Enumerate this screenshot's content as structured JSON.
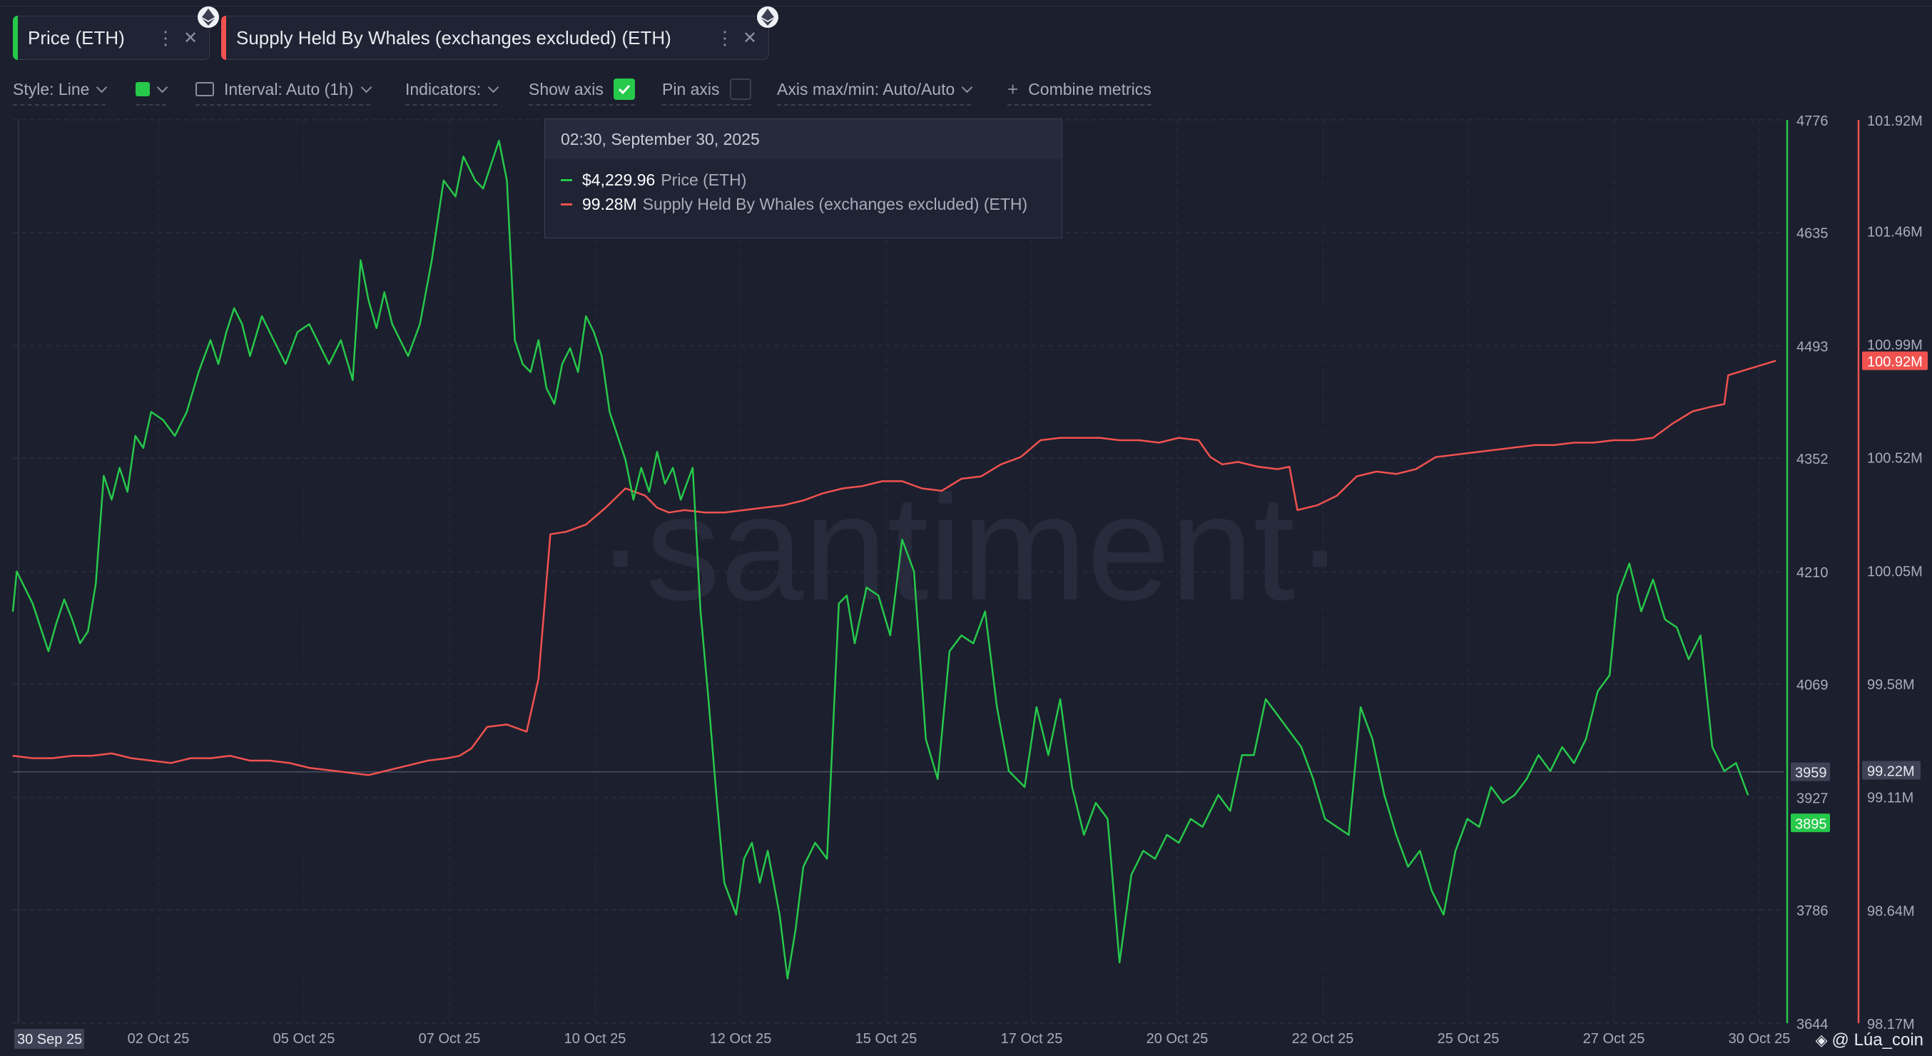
{
  "legend_tabs": [
    {
      "label": "Price (ETH)",
      "color": "#26c94a"
    },
    {
      "label": "Supply Held By Whales (exchanges excluded) (ETH)",
      "color": "#f0524f"
    }
  ],
  "toolbar": {
    "style": "Style: Line",
    "interval": "Interval: Auto (1h)",
    "indicators": "Indicators:",
    "show_axis": "Show axis",
    "pin_axis": "Pin axis",
    "axis_maxmin": "Axis max/min: Auto/Auto",
    "combine": "Combine metrics",
    "swatch_color": "#26c94a",
    "show_axis_checked": true,
    "pin_axis_checked": false
  },
  "tooltip": {
    "date": "02:30, September 30, 2025",
    "rows": [
      {
        "value": "$4,229.96",
        "name": "Price (ETH)",
        "color": "#26c94a"
      },
      {
        "value": "99.28M",
        "name": "Supply Held By Whales (exchanges excluded) (ETH)",
        "color": "#f0524f"
      }
    ]
  },
  "watermark": "·santiment·",
  "footer": "@ Lúa_coin",
  "chart_data": {
    "type": "line",
    "x_labels": [
      "30 Sep 25",
      "02 Oct 25",
      "05 Oct 25",
      "07 Oct 25",
      "10 Oct 25",
      "12 Oct 25",
      "15 Oct 25",
      "17 Oct 25",
      "20 Oct 25",
      "22 Oct 25",
      "25 Oct 25",
      "27 Oct 25",
      "30 Oct 25"
    ],
    "x_range": [
      "2025-09-30",
      "2025-10-30"
    ],
    "grid": true,
    "series": [
      {
        "name": "Price (ETH)",
        "color": "#26c94a",
        "axis": "left-price",
        "y_ticks": [
          "4776",
          "4635",
          "4493",
          "4352",
          "4210",
          "4069",
          "3927",
          "3786",
          "3644"
        ],
        "ylim": [
          3644,
          4776
        ],
        "last_value": "3895",
        "crosshair_value": "3959",
        "points": [
          [
            0.0,
            4160
          ],
          [
            0.1,
            4210
          ],
          [
            0.3,
            4190
          ],
          [
            0.5,
            4170
          ],
          [
            0.7,
            4140
          ],
          [
            0.9,
            4110
          ],
          [
            1.1,
            4145
          ],
          [
            1.3,
            4175
          ],
          [
            1.5,
            4150
          ],
          [
            1.7,
            4120
          ],
          [
            1.9,
            4135
          ],
          [
            2.1,
            4195
          ],
          [
            2.3,
            4330
          ],
          [
            2.5,
            4300
          ],
          [
            2.7,
            4340
          ],
          [
            2.9,
            4310
          ],
          [
            3.1,
            4380
          ],
          [
            3.3,
            4365
          ],
          [
            3.5,
            4410
          ],
          [
            3.8,
            4400
          ],
          [
            4.1,
            4380
          ],
          [
            4.4,
            4410
          ],
          [
            4.7,
            4460
          ],
          [
            5.0,
            4500
          ],
          [
            5.2,
            4470
          ],
          [
            5.4,
            4510
          ],
          [
            5.6,
            4540
          ],
          [
            5.8,
            4520
          ],
          [
            6.0,
            4480
          ],
          [
            6.3,
            4530
          ],
          [
            6.6,
            4500
          ],
          [
            6.9,
            4470
          ],
          [
            7.2,
            4510
          ],
          [
            7.5,
            4520
          ],
          [
            7.8,
            4490
          ],
          [
            8.0,
            4470
          ],
          [
            8.3,
            4500
          ],
          [
            8.6,
            4450
          ],
          [
            8.8,
            4600
          ],
          [
            9.0,
            4550
          ],
          [
            9.2,
            4515
          ],
          [
            9.4,
            4560
          ],
          [
            9.6,
            4520
          ],
          [
            9.8,
            4500
          ],
          [
            10.0,
            4480
          ],
          [
            10.3,
            4520
          ],
          [
            10.6,
            4600
          ],
          [
            10.9,
            4700
          ],
          [
            11.2,
            4680
          ],
          [
            11.4,
            4730
          ],
          [
            11.7,
            4700
          ],
          [
            11.9,
            4690
          ],
          [
            12.1,
            4720
          ],
          [
            12.3,
            4750
          ],
          [
            12.5,
            4700
          ],
          [
            12.7,
            4500
          ],
          [
            12.9,
            4470
          ],
          [
            13.1,
            4460
          ],
          [
            13.3,
            4500
          ],
          [
            13.5,
            4440
          ],
          [
            13.7,
            4420
          ],
          [
            13.9,
            4470
          ],
          [
            14.1,
            4490
          ],
          [
            14.3,
            4460
          ],
          [
            14.5,
            4530
          ],
          [
            14.7,
            4510
          ],
          [
            14.9,
            4480
          ],
          [
            15.1,
            4410
          ],
          [
            15.3,
            4380
          ],
          [
            15.5,
            4350
          ],
          [
            15.7,
            4300
          ],
          [
            15.9,
            4340
          ],
          [
            16.1,
            4310
          ],
          [
            16.3,
            4360
          ],
          [
            16.5,
            4320
          ],
          [
            16.7,
            4340
          ],
          [
            16.9,
            4300
          ],
          [
            17.2,
            4340
          ],
          [
            17.4,
            4160
          ],
          [
            17.6,
            4050
          ],
          [
            17.8,
            3930
          ],
          [
            18.0,
            3820
          ],
          [
            18.3,
            3780
          ],
          [
            18.5,
            3850
          ],
          [
            18.7,
            3870
          ],
          [
            18.9,
            3820
          ],
          [
            19.1,
            3860
          ],
          [
            19.4,
            3780
          ],
          [
            19.6,
            3700
          ],
          [
            19.8,
            3760
          ],
          [
            20.0,
            3840
          ],
          [
            20.3,
            3870
          ],
          [
            20.6,
            3850
          ],
          [
            20.9,
            4170
          ],
          [
            21.1,
            4180
          ],
          [
            21.3,
            4120
          ],
          [
            21.6,
            4190
          ],
          [
            21.9,
            4180
          ],
          [
            22.2,
            4130
          ],
          [
            22.5,
            4250
          ],
          [
            22.8,
            4210
          ],
          [
            23.1,
            4000
          ],
          [
            23.4,
            3950
          ],
          [
            23.7,
            4110
          ],
          [
            24.0,
            4130
          ],
          [
            24.3,
            4120
          ],
          [
            24.6,
            4160
          ],
          [
            24.9,
            4040
          ],
          [
            25.2,
            3960
          ],
          [
            25.6,
            3940
          ],
          [
            25.9,
            4040
          ],
          [
            26.2,
            3980
          ],
          [
            26.5,
            4050
          ],
          [
            26.8,
            3940
          ],
          [
            27.1,
            3880
          ],
          [
            27.4,
            3920
          ],
          [
            27.7,
            3900
          ],
          [
            28.0,
            3720
          ],
          [
            28.3,
            3830
          ],
          [
            28.6,
            3860
          ],
          [
            28.9,
            3850
          ],
          [
            29.2,
            3880
          ],
          [
            29.5,
            3870
          ],
          [
            29.8,
            3900
          ],
          [
            30.1,
            3890
          ],
          [
            30.5,
            3930
          ],
          [
            30.8,
            3910
          ],
          [
            31.1,
            3980
          ],
          [
            31.4,
            3980
          ],
          [
            31.7,
            4050
          ],
          [
            32.0,
            4030
          ],
          [
            32.3,
            4010
          ],
          [
            32.6,
            3990
          ],
          [
            32.9,
            3950
          ],
          [
            33.2,
            3900
          ],
          [
            33.5,
            3890
          ],
          [
            33.8,
            3880
          ],
          [
            34.1,
            4040
          ],
          [
            34.4,
            4000
          ],
          [
            34.7,
            3930
          ],
          [
            35.0,
            3880
          ],
          [
            35.3,
            3840
          ],
          [
            35.6,
            3860
          ],
          [
            35.9,
            3810
          ],
          [
            36.2,
            3780
          ],
          [
            36.5,
            3860
          ],
          [
            36.8,
            3900
          ],
          [
            37.1,
            3890
          ],
          [
            37.4,
            3940
          ],
          [
            37.7,
            3920
          ],
          [
            38.0,
            3930
          ],
          [
            38.3,
            3950
          ],
          [
            38.6,
            3980
          ],
          [
            38.9,
            3960
          ],
          [
            39.2,
            3990
          ],
          [
            39.5,
            3970
          ],
          [
            39.8,
            4000
          ],
          [
            40.1,
            4060
          ],
          [
            40.4,
            4080
          ],
          [
            40.6,
            4180
          ],
          [
            40.9,
            4220
          ],
          [
            41.2,
            4160
          ],
          [
            41.5,
            4200
          ],
          [
            41.8,
            4150
          ],
          [
            42.1,
            4140
          ],
          [
            42.4,
            4100
          ],
          [
            42.7,
            4130
          ],
          [
            43.0,
            3990
          ],
          [
            43.3,
            3960
          ],
          [
            43.6,
            3970
          ],
          [
            43.9,
            3930
          ]
        ]
      },
      {
        "name": "Supply Held By Whales (exchanges excluded) (ETH)",
        "color": "#f0524f",
        "axis": "right-supply",
        "y_ticks": [
          "101.92M",
          "101.46M",
          "100.99M",
          "100.52M",
          "100.05M",
          "99.58M",
          "99.11M",
          "98.64M",
          "98.17M"
        ],
        "ylim": [
          98.17,
          101.92
        ],
        "last_value": "100.92M",
        "crosshair_value": "99.22M",
        "points": [
          [
            0.0,
            99.28
          ],
          [
            0.5,
            99.27
          ],
          [
            1.0,
            99.27
          ],
          [
            1.5,
            99.28
          ],
          [
            2.0,
            99.28
          ],
          [
            2.5,
            99.29
          ],
          [
            3.0,
            99.27
          ],
          [
            3.5,
            99.26
          ],
          [
            4.0,
            99.25
          ],
          [
            4.5,
            99.27
          ],
          [
            5.0,
            99.27
          ],
          [
            5.5,
            99.28
          ],
          [
            6.0,
            99.26
          ],
          [
            6.5,
            99.26
          ],
          [
            7.0,
            99.25
          ],
          [
            7.5,
            99.23
          ],
          [
            8.0,
            99.22
          ],
          [
            8.5,
            99.21
          ],
          [
            9.0,
            99.2
          ],
          [
            9.5,
            99.22
          ],
          [
            10.0,
            99.24
          ],
          [
            10.5,
            99.26
          ],
          [
            11.0,
            99.27
          ],
          [
            11.3,
            99.28
          ],
          [
            11.6,
            99.31
          ],
          [
            12.0,
            99.4
          ],
          [
            12.5,
            99.41
          ],
          [
            13.0,
            99.38
          ],
          [
            13.3,
            99.6
          ],
          [
            13.6,
            100.2
          ],
          [
            14.0,
            100.21
          ],
          [
            14.5,
            100.24
          ],
          [
            15.0,
            100.31
          ],
          [
            15.5,
            100.39
          ],
          [
            16.0,
            100.36
          ],
          [
            16.3,
            100.31
          ],
          [
            16.6,
            100.29
          ],
          [
            17.0,
            100.3
          ],
          [
            17.5,
            100.29
          ],
          [
            18.0,
            100.29
          ],
          [
            18.5,
            100.3
          ],
          [
            19.0,
            100.31
          ],
          [
            19.5,
            100.32
          ],
          [
            20.0,
            100.34
          ],
          [
            20.5,
            100.37
          ],
          [
            21.0,
            100.39
          ],
          [
            21.5,
            100.4
          ],
          [
            22.0,
            100.42
          ],
          [
            22.5,
            100.42
          ],
          [
            23.0,
            100.39
          ],
          [
            23.5,
            100.38
          ],
          [
            24.0,
            100.43
          ],
          [
            24.5,
            100.44
          ],
          [
            25.0,
            100.49
          ],
          [
            25.5,
            100.52
          ],
          [
            26.0,
            100.59
          ],
          [
            26.5,
            100.6
          ],
          [
            27.0,
            100.6
          ],
          [
            27.5,
            100.6
          ],
          [
            28.0,
            100.59
          ],
          [
            28.5,
            100.59
          ],
          [
            29.0,
            100.58
          ],
          [
            29.5,
            100.6
          ],
          [
            30.0,
            100.59
          ],
          [
            30.3,
            100.52
          ],
          [
            30.6,
            100.49
          ],
          [
            31.0,
            100.5
          ],
          [
            31.5,
            100.48
          ],
          [
            32.0,
            100.47
          ],
          [
            32.3,
            100.48
          ],
          [
            32.5,
            100.3
          ],
          [
            33.0,
            100.32
          ],
          [
            33.5,
            100.36
          ],
          [
            34.0,
            100.44
          ],
          [
            34.5,
            100.46
          ],
          [
            35.0,
            100.45
          ],
          [
            35.5,
            100.47
          ],
          [
            36.0,
            100.52
          ],
          [
            36.5,
            100.53
          ],
          [
            37.0,
            100.54
          ],
          [
            37.5,
            100.55
          ],
          [
            38.0,
            100.56
          ],
          [
            38.5,
            100.57
          ],
          [
            39.0,
            100.57
          ],
          [
            39.5,
            100.58
          ],
          [
            40.0,
            100.58
          ],
          [
            40.5,
            100.59
          ],
          [
            41.0,
            100.59
          ],
          [
            41.5,
            100.6
          ],
          [
            42.0,
            100.66
          ],
          [
            42.5,
            100.71
          ],
          [
            43.0,
            100.73
          ],
          [
            43.3,
            100.74
          ],
          [
            43.4,
            100.86
          ],
          [
            43.8,
            100.88
          ],
          [
            44.2,
            100.9
          ],
          [
            44.6,
            100.92
          ]
        ]
      }
    ]
  }
}
